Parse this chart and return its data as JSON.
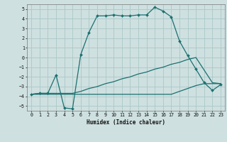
{
  "xlabel": "Humidex (Indice chaleur)",
  "bg_color": "#cfe0e0",
  "grid_color": "#aac8c8",
  "line_color": "#1a7070",
  "line1_x": [
    0,
    1,
    2,
    3,
    4,
    5,
    6,
    7,
    8,
    9,
    10,
    11,
    12,
    13,
    14,
    15,
    16,
    17,
    18,
    19,
    20,
    21,
    22,
    23
  ],
  "line1_y": [
    -3.8,
    -3.8,
    -3.8,
    -3.8,
    -3.8,
    -3.8,
    -3.8,
    -3.8,
    -3.8,
    -3.8,
    -3.8,
    -3.8,
    -3.8,
    -3.8,
    -3.8,
    -3.8,
    -3.8,
    -3.8,
    -3.5,
    -3.2,
    -2.9,
    -2.7,
    -2.7,
    -2.7
  ],
  "line2_x": [
    0,
    1,
    2,
    3,
    4,
    5,
    6,
    7,
    8,
    9,
    10,
    11,
    12,
    13,
    14,
    15,
    16,
    17,
    18,
    19,
    20,
    21,
    22,
    23
  ],
  "line2_y": [
    -3.8,
    -3.7,
    -3.7,
    -3.7,
    -3.7,
    -3.7,
    -3.5,
    -3.2,
    -3.0,
    -2.7,
    -2.5,
    -2.2,
    -2.0,
    -1.7,
    -1.5,
    -1.2,
    -1.0,
    -0.7,
    -0.5,
    -0.2,
    0.0,
    -1.3,
    -2.6,
    -2.7
  ],
  "line3_x": [
    0,
    1,
    2,
    3,
    4,
    5,
    6,
    7,
    8,
    9,
    10,
    11,
    12,
    13,
    14,
    15,
    16,
    17,
    18,
    19,
    20,
    21,
    22,
    23
  ],
  "line3_y": [
    -3.8,
    -3.7,
    -3.7,
    -1.8,
    -5.2,
    -5.3,
    0.3,
    2.6,
    4.3,
    4.3,
    4.4,
    4.3,
    4.3,
    4.4,
    4.4,
    5.2,
    4.8,
    4.2,
    1.7,
    0.2,
    -1.2,
    -2.6,
    -3.4,
    -2.8
  ],
  "xlim": [
    -0.5,
    23.5
  ],
  "ylim": [
    -5.5,
    5.5
  ],
  "yticks": [
    -5,
    -4,
    -3,
    -2,
    -1,
    0,
    1,
    2,
    3,
    4,
    5
  ],
  "xticks": [
    0,
    1,
    2,
    3,
    4,
    5,
    6,
    7,
    8,
    9,
    10,
    11,
    12,
    13,
    14,
    15,
    16,
    17,
    18,
    19,
    20,
    21,
    22,
    23
  ]
}
